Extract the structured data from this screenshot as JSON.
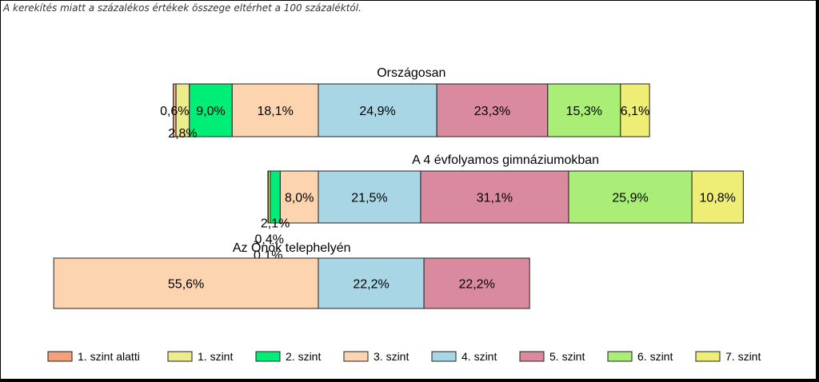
{
  "note": "A kerekítés miatt a  százalékos értékek összege eltérhet a 100 százaléktól.",
  "chart_data": {
    "type": "bar",
    "stacked": true,
    "orientation": "horizontal",
    "legend_position": "bottom",
    "categories": [
      "Országosan",
      "A 4 évfolyamos gimnáziumokban",
      "Az Önök telephelyén"
    ],
    "series": [
      {
        "name": "1. szint alatti",
        "color": "#f4a07a",
        "values": [
          0.6,
          0.1,
          0
        ],
        "labels": [
          "0,6%",
          "0,1%",
          ""
        ]
      },
      {
        "name": "1. szint",
        "color": "#ecec8c",
        "values": [
          2.8,
          0.4,
          0
        ],
        "labels": [
          "2,8%",
          "0,4%",
          ""
        ]
      },
      {
        "name": "2. szint",
        "color": "#00ee77",
        "values": [
          9.0,
          2.1,
          0
        ],
        "labels": [
          "9,0%",
          "2,1%",
          ""
        ]
      },
      {
        "name": "3. szint",
        "color": "#fcd5b0",
        "values": [
          18.1,
          8.0,
          55.6
        ],
        "labels": [
          "18,1%",
          "8,0%",
          "55,6%"
        ]
      },
      {
        "name": "4. szint",
        "color": "#a9d6e5",
        "values": [
          24.9,
          21.5,
          22.2
        ],
        "labels": [
          "24,9%",
          "21,5%",
          "22,2%"
        ]
      },
      {
        "name": "5. szint",
        "color": "#d98a9e",
        "values": [
          23.3,
          31.1,
          22.2
        ],
        "labels": [
          "23,3%",
          "31,1%",
          "22,2%"
        ]
      },
      {
        "name": "6. szint",
        "color": "#aaee77",
        "values": [
          15.3,
          25.9,
          0
        ],
        "labels": [
          "15,3%",
          "25,9%",
          ""
        ]
      },
      {
        "name": "7. szint",
        "color": "#eeee77",
        "values": [
          6.1,
          10.8,
          0
        ],
        "labels": [
          "6,1%",
          "10,8%",
          ""
        ]
      }
    ]
  }
}
